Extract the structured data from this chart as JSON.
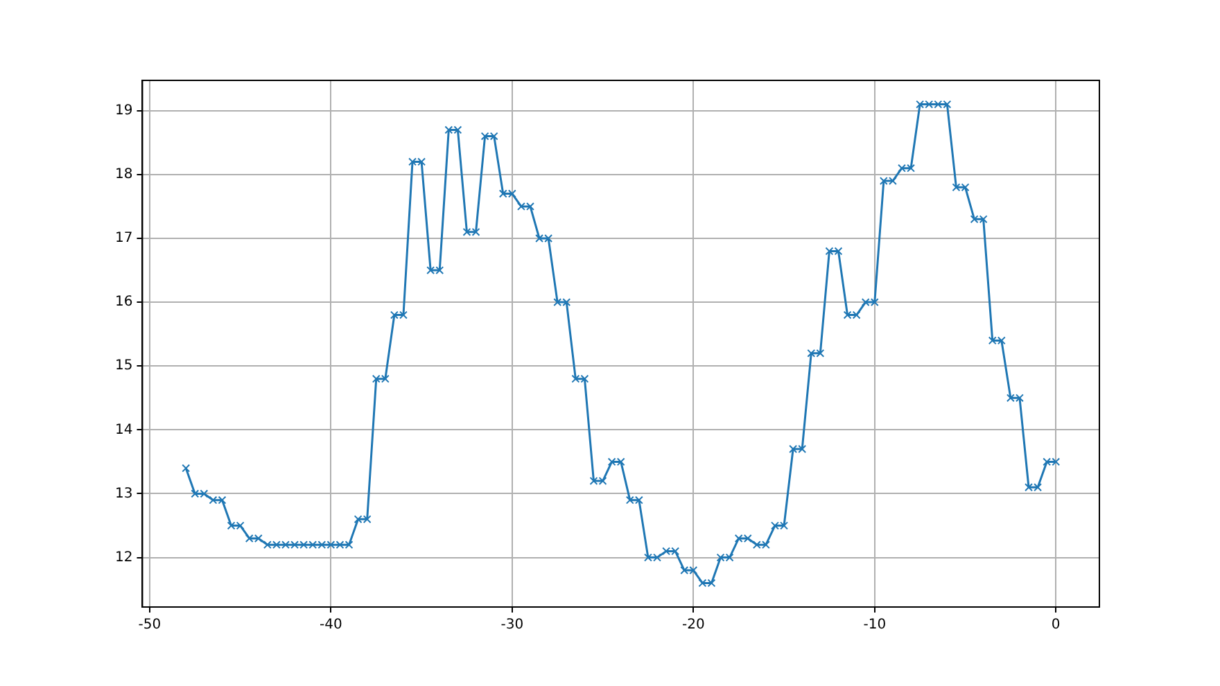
{
  "chart_data": {
    "type": "line",
    "x": [
      -48,
      -47.5,
      -47,
      -46.5,
      -46,
      -45.5,
      -45,
      -44.5,
      -44,
      -43.5,
      -43,
      -42.5,
      -42,
      -41.5,
      -41,
      -40.5,
      -40,
      -39.5,
      -39,
      -38.5,
      -38,
      -37.5,
      -37,
      -36.5,
      -36,
      -35.5,
      -35,
      -34.5,
      -34,
      -33.5,
      -33,
      -32.5,
      -32,
      -31.5,
      -31,
      -30.5,
      -30,
      -29.5,
      -29,
      -28.5,
      -28,
      -27.5,
      -27,
      -26.5,
      -26,
      -25.5,
      -25,
      -24.5,
      -24,
      -23.5,
      -23,
      -22.5,
      -22,
      -21.5,
      -21,
      -20.5,
      -20,
      -19.5,
      -19,
      -18.5,
      -18,
      -17.5,
      -17,
      -16.5,
      -16,
      -15.5,
      -15,
      -14.5,
      -14,
      -13.5,
      -13,
      -12.5,
      -12,
      -11.5,
      -11,
      -10.5,
      -10,
      -9.5,
      -9,
      -8.5,
      -8,
      -7.5,
      -7,
      -6.5,
      -6,
      -5.5,
      -5,
      -4.5,
      -4,
      -3.5,
      -3,
      -2.5,
      -2,
      -1.5,
      -1,
      -0.5,
      0
    ],
    "series": [
      {
        "color": "#1f77b4",
        "values": [
          13.4,
          13.0,
          13.0,
          12.9,
          12.9,
          12.5,
          12.5,
          12.3,
          12.3,
          12.2,
          12.2,
          12.2,
          12.2,
          12.2,
          12.2,
          12.2,
          12.2,
          12.2,
          12.2,
          12.6,
          12.6,
          14.8,
          14.8,
          15.8,
          15.8,
          18.2,
          18.2,
          16.5,
          16.5,
          18.7,
          18.7,
          17.1,
          17.1,
          18.6,
          18.6,
          17.7,
          17.7,
          17.5,
          17.5,
          17.0,
          17.0,
          16.0,
          16.0,
          14.8,
          14.8,
          13.2,
          13.2,
          13.5,
          13.5,
          12.9,
          12.9,
          12.0,
          12.0,
          12.1,
          12.1,
          11.8,
          11.8,
          11.6,
          11.6,
          12.0,
          12.0,
          12.3,
          12.3,
          12.2,
          12.2,
          12.5,
          12.5,
          13.7,
          13.7,
          15.2,
          15.2,
          16.8,
          16.8,
          15.8,
          15.8,
          16.0,
          16.0,
          17.9,
          17.9,
          18.1,
          18.1,
          19.1,
          19.1,
          19.1,
          19.1,
          17.8,
          17.8,
          17.3,
          17.3,
          15.4,
          15.4,
          14.5,
          14.5,
          13.1,
          13.1,
          13.5,
          13.5
        ]
      }
    ],
    "xlim": [
      -50.4,
      2.4
    ],
    "ylim": [
      11.225,
      19.475
    ],
    "xticks": [
      -50,
      -40,
      -30,
      -20,
      -10,
      0
    ],
    "yticks": [
      12,
      13,
      14,
      15,
      16,
      17,
      18,
      19
    ],
    "grid": true,
    "marker": "cross",
    "line_style": "solid",
    "legend": false
  }
}
